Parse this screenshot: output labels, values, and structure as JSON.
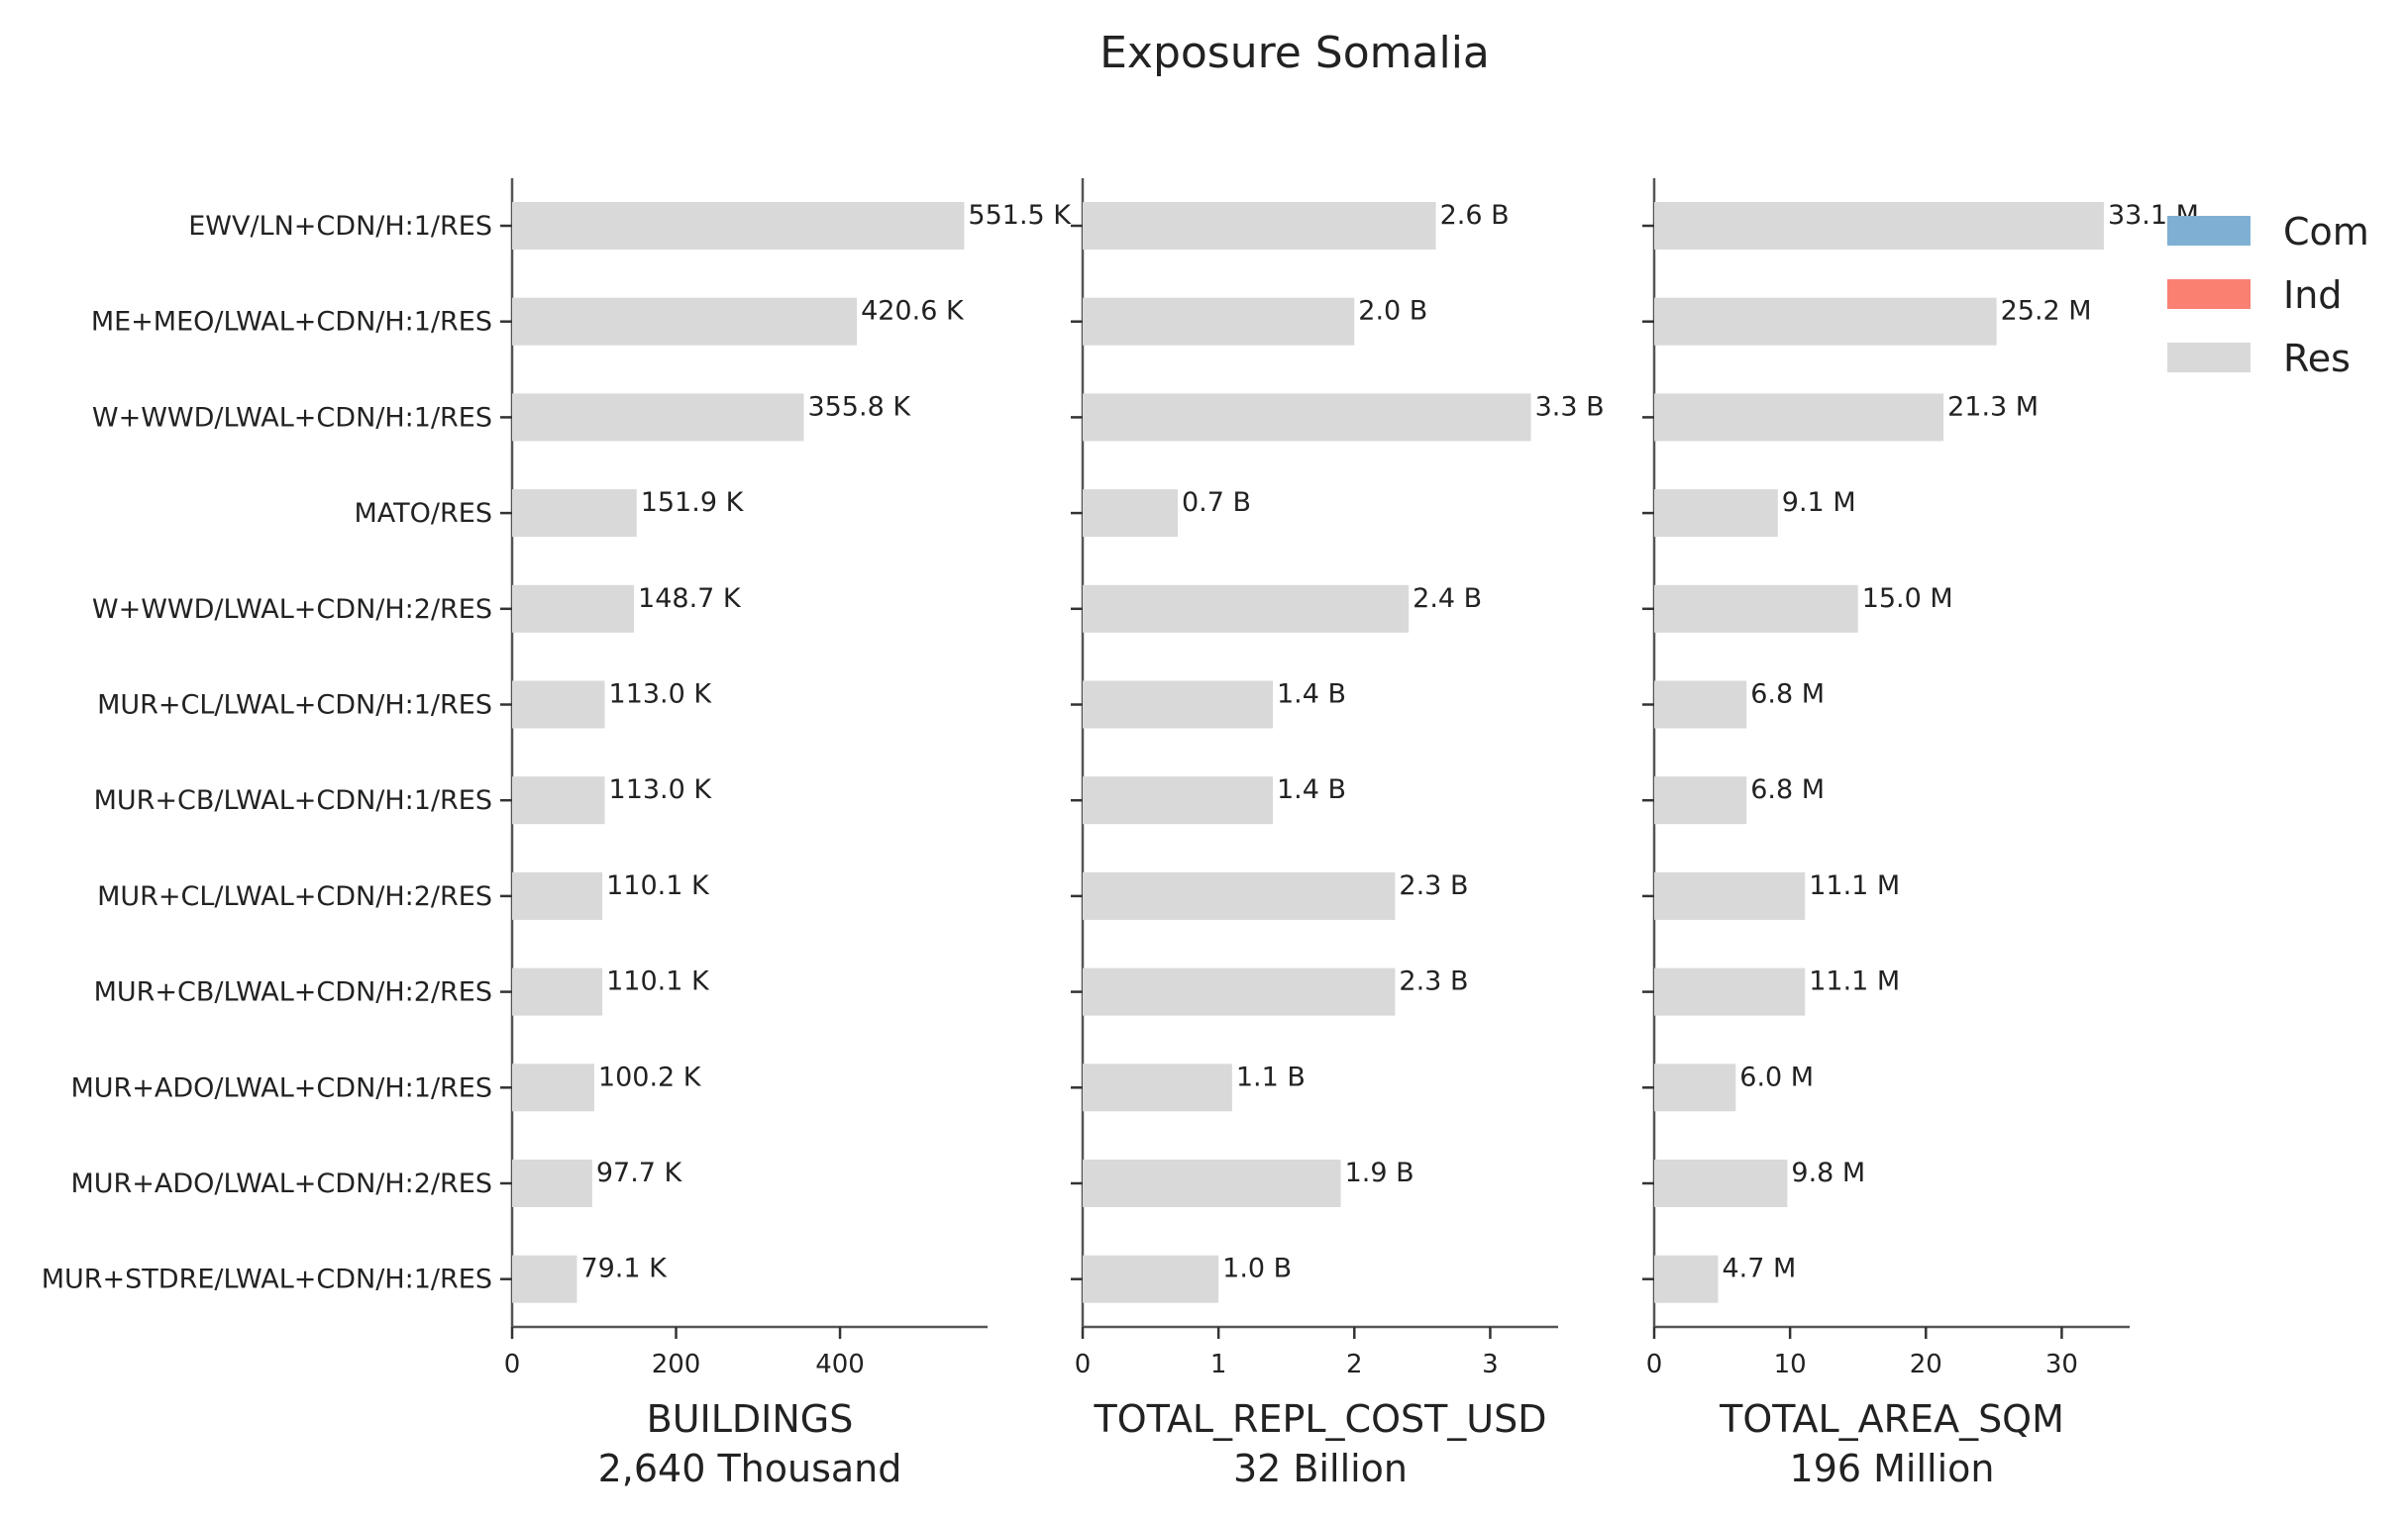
{
  "chart_data": {
    "type": "bar",
    "orientation": "horizontal",
    "title": "Exposure Somalia",
    "categories": [
      "EWV/LN+CDN/H:1/RES",
      "ME+MEO/LWAL+CDN/H:1/RES",
      "W+WWD/LWAL+CDN/H:1/RES",
      "MATO/RES",
      "W+WWD/LWAL+CDN/H:2/RES",
      "MUR+CL/LWAL+CDN/H:1/RES",
      "MUR+CB/LWAL+CDN/H:1/RES",
      "MUR+CL/LWAL+CDN/H:2/RES",
      "MUR+CB/LWAL+CDN/H:2/RES",
      "MUR+ADO/LWAL+CDN/H:1/RES",
      "MUR+ADO/LWAL+CDN/H:2/RES",
      "MUR+STDRE/LWAL+CDN/H:1/RES"
    ],
    "panels": [
      {
        "xlabel": "BUILDINGS",
        "total": "2,640 Thousand",
        "xlim": [
          0,
          580
        ],
        "xticks": [
          0,
          200,
          400
        ],
        "values": [
          551.5,
          420.6,
          355.8,
          151.9,
          148.7,
          113.0,
          113.0,
          110.1,
          110.1,
          100.2,
          97.7,
          79.1
        ],
        "labels": [
          "551.5 K",
          "420.6 K",
          "355.8 K",
          "151.9 K",
          "148.7 K",
          "113.0 K",
          "113.0 K",
          "110.1 K",
          "110.1 K",
          "100.2 K",
          "97.7 K",
          "79.1 K"
        ]
      },
      {
        "xlabel": "TOTAL_REPL_COST_USD",
        "total": "32 Billion",
        "xlim": [
          0,
          3.5
        ],
        "xticks": [
          0,
          1,
          2,
          3
        ],
        "values": [
          2.6,
          2.0,
          3.3,
          0.7,
          2.4,
          1.4,
          1.4,
          2.3,
          2.3,
          1.1,
          1.9,
          1.0
        ],
        "labels": [
          "2.6 B",
          "2.0 B",
          "3.3 B",
          "0.7 B",
          "2.4 B",
          "1.4 B",
          "1.4 B",
          "2.3 B",
          "2.3 B",
          "1.1 B",
          "1.9 B",
          "1.0 B"
        ]
      },
      {
        "xlabel": "TOTAL_AREA_SQM",
        "total": "196 Million",
        "xlim": [
          0,
          35
        ],
        "xticks": [
          0,
          10,
          20,
          30
        ],
        "values": [
          33.1,
          25.2,
          21.3,
          9.1,
          15.0,
          6.8,
          6.8,
          11.1,
          11.1,
          6.0,
          9.8,
          4.7
        ],
        "labels": [
          "33.1 M",
          "25.2 M",
          "21.3 M",
          "9.1 M",
          "15.0 M",
          "6.8 M",
          "6.8 M",
          "11.1 M",
          "11.1 M",
          "6.0 M",
          "9.8 M",
          "4.7 M"
        ]
      }
    ],
    "series": [
      {
        "name": "Com",
        "color": "#7fb0d4"
      },
      {
        "name": "Ind",
        "color": "#fa8072"
      },
      {
        "name": "Res",
        "color": "#d9d9d9"
      }
    ],
    "bar_series": "Res",
    "legend_position": "top-right",
    "grid": false
  }
}
